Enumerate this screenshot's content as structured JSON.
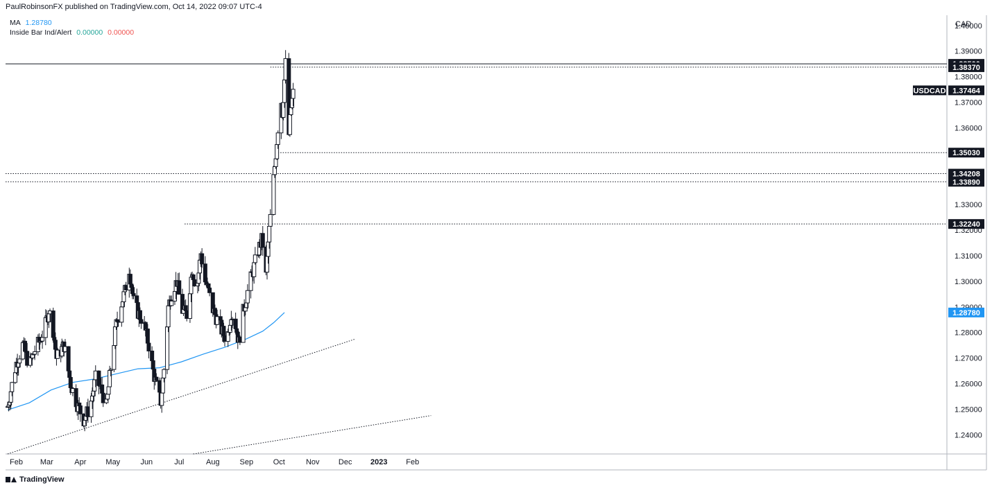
{
  "header": {
    "text": "PaulRobinsonFX published on TradingView.com, Oct 14, 2022 09:07 UTC-4"
  },
  "legend": {
    "ma_label": "MA",
    "ma_value": "1.28780",
    "ib_label": "Inside Bar Ind/Alert",
    "ib_value1": "0.00000",
    "ib_value2": "0.00000"
  },
  "footer": {
    "logo_text": "TradingView"
  },
  "colors": {
    "ma": "#2196f3",
    "up_inside": "#26a69a",
    "down_inside": "#ef5350",
    "axis_tag_bg": "#131722"
  },
  "chart_data": {
    "type": "candlestick",
    "symbol": "USDCAD",
    "currency": "CAD",
    "y_ticks": [
      "1.24000",
      "1.25000",
      "1.26000",
      "1.27000",
      "1.28000",
      "1.29000",
      "1.30000",
      "1.31000",
      "1.32000",
      "1.33000",
      "1.34000",
      "1.35000",
      "1.36000",
      "1.37000",
      "1.38000",
      "1.39000",
      "1.40000"
    ],
    "x_ticks": [
      "Feb",
      "Mar",
      "Apr",
      "May",
      "Jun",
      "Jul",
      "Aug",
      "Sep",
      "Oct",
      "Nov",
      "Dec",
      "2023",
      "Feb"
    ],
    "ylim": [
      1.2325,
      1.404
    ],
    "price_tags": [
      {
        "label": "1.38500",
        "value": 1.385,
        "style": "level"
      },
      {
        "label": "1.38370",
        "value": 1.3837,
        "style": "level"
      },
      {
        "label": "USDCAD",
        "value": 1.37464,
        "style": "symbol"
      },
      {
        "label": "1.37464",
        "value": 1.37464,
        "style": "level"
      },
      {
        "label": "1.35030",
        "value": 1.3503,
        "style": "level"
      },
      {
        "label": "1.34208",
        "value": 1.34208,
        "style": "level"
      },
      {
        "label": "1.33890",
        "value": 1.3389,
        "style": "level"
      },
      {
        "label": "1.32240",
        "value": 1.3224,
        "style": "level"
      },
      {
        "label": "1.28780",
        "value": 1.2878,
        "style": "ma"
      }
    ],
    "horizontal_levels": [
      {
        "value": 1.385,
        "style": "solid",
        "from_day": 0
      },
      {
        "value": 1.3837,
        "style": "dotted",
        "from_day": 242
      },
      {
        "value": 1.3503,
        "style": "dotted",
        "from_day": 249
      },
      {
        "value": 1.34208,
        "style": "dotted",
        "from_day": 0
      },
      {
        "value": 1.3389,
        "style": "dotted",
        "from_day": 0
      },
      {
        "value": 1.3224,
        "style": "dotted",
        "from_day": 163
      }
    ],
    "trendlines": [
      {
        "from": [
          0,
          1.2325
        ],
        "to": [
          320,
          1.2774
        ]
      },
      {
        "from": [
          171,
          1.2325
        ],
        "to": [
          390,
          1.2475
        ]
      }
    ],
    "moving_average": [
      [
        0,
        1.2497
      ],
      [
        20,
        1.2525
      ],
      [
        40,
        1.2575
      ],
      [
        60,
        1.2605
      ],
      [
        80,
        1.2618
      ],
      [
        100,
        1.2638
      ],
      [
        120,
        1.2658
      ],
      [
        140,
        1.2662
      ],
      [
        160,
        1.2685
      ],
      [
        180,
        1.2715
      ],
      [
        200,
        1.2742
      ],
      [
        220,
        1.2775
      ],
      [
        235,
        1.2805
      ],
      [
        245,
        1.2838
      ],
      [
        255,
        1.2878
      ]
    ],
    "anchors": [
      [
        0,
        1.251
      ],
      [
        8,
        1.268
      ],
      [
        14,
        1.275
      ],
      [
        20,
        1.267
      ],
      [
        25,
        1.273
      ],
      [
        30,
        1.277
      ],
      [
        35,
        1.283
      ],
      [
        38,
        1.289
      ],
      [
        42,
        1.281
      ],
      [
        45,
        1.27
      ],
      [
        52,
        1.275
      ],
      [
        58,
        1.26
      ],
      [
        64,
        1.252
      ],
      [
        70,
        1.246
      ],
      [
        76,
        1.251
      ],
      [
        81,
        1.262
      ],
      [
        86,
        1.258
      ],
      [
        91,
        1.251
      ],
      [
        96,
        1.27
      ],
      [
        100,
        1.283
      ],
      [
        104,
        1.29
      ],
      [
        108,
        1.296
      ],
      [
        112,
        1.305
      ],
      [
        116,
        1.292
      ],
      [
        120,
        1.288
      ],
      [
        125,
        1.284
      ],
      [
        130,
        1.275
      ],
      [
        134,
        1.265
      ],
      [
        138,
        1.257
      ],
      [
        141,
        1.253
      ],
      [
        145,
        1.27
      ],
      [
        148,
        1.29
      ],
      [
        152,
        1.297
      ],
      [
        156,
        1.3
      ],
      [
        160,
        1.289
      ],
      [
        165,
        1.287
      ],
      [
        170,
        1.305
      ],
      [
        174,
        1.296
      ],
      [
        178,
        1.311
      ],
      [
        182,
        1.3
      ],
      [
        185,
        1.296
      ],
      [
        188,
        1.29
      ],
      [
        193,
        1.285
      ],
      [
        198,
        1.28
      ],
      [
        202,
        1.277
      ],
      [
        206,
        1.288
      ],
      [
        210,
        1.283
      ],
      [
        213,
        1.276
      ],
      [
        217,
        1.288
      ],
      [
        222,
        1.298
      ],
      [
        226,
        1.304
      ],
      [
        230,
        1.311
      ],
      [
        234,
        1.316
      ],
      [
        236,
        1.313
      ],
      [
        238,
        1.302
      ],
      [
        240,
        1.315
      ],
      [
        243,
        1.33
      ],
      [
        246,
        1.345
      ],
      [
        249,
        1.36
      ],
      [
        251,
        1.375
      ],
      [
        253,
        1.366
      ],
      [
        256,
        1.385
      ],
      [
        258,
        1.352
      ],
      [
        261,
        1.368
      ],
      [
        264,
        1.376
      ],
      [
        267,
        1.381
      ],
      [
        269,
        1.38
      ],
      [
        270,
        1.3746
      ]
    ],
    "start_date": "2022-01-24",
    "last_date": "2022-10-14"
  }
}
